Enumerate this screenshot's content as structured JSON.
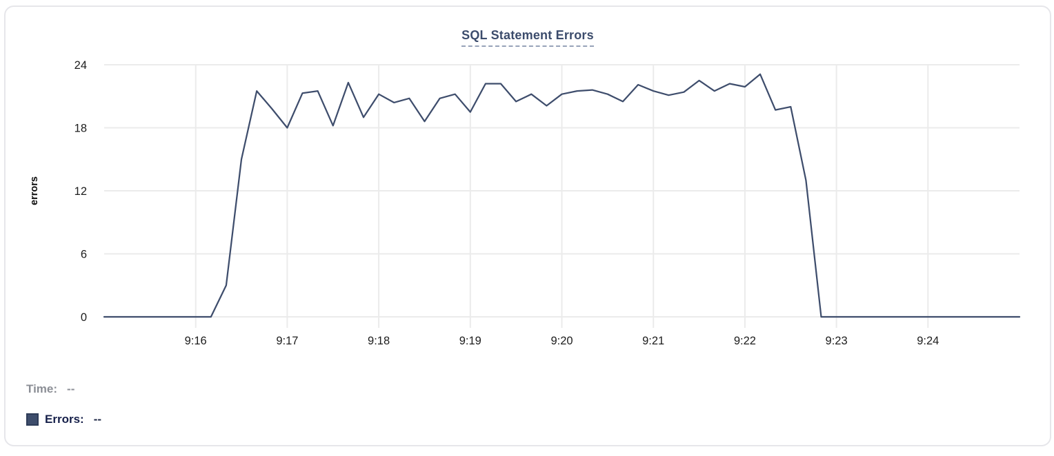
{
  "title": "SQL Statement Errors",
  "legend": {
    "time_label": "Time:",
    "time_value": "--",
    "errors_label": "Errors:",
    "errors_value": "--"
  },
  "colors": {
    "line": "#3e4d6c",
    "grid": "#ebebeb",
    "tick_text": "#1c1c1c",
    "axis_title_text": "#0d0d0d",
    "title_text": "#3c4c6c",
    "title_underline": "#96a2b8",
    "card_border": "#e6e6ea",
    "time_label_text": "#8b8e95",
    "errors_label_text": "#16204a"
  },
  "chart_data": {
    "type": "line",
    "title": "SQL Statement Errors",
    "xlabel": "",
    "ylabel": "errors",
    "ylim": [
      0,
      24
    ],
    "yticks": [
      0,
      6,
      12,
      18,
      24
    ],
    "grid": true,
    "markers": false,
    "legend_position": "bottom-left",
    "x_domain": [
      "9:15:00",
      "9:25:00"
    ],
    "x_ticks": [
      {
        "label": "9:16",
        "time": "9:16:00"
      },
      {
        "label": "9:17",
        "time": "9:17:00"
      },
      {
        "label": "9:18",
        "time": "9:18:00"
      },
      {
        "label": "9:19",
        "time": "9:19:00"
      },
      {
        "label": "9:20",
        "time": "9:20:00"
      },
      {
        "label": "9:21",
        "time": "9:21:00"
      },
      {
        "label": "9:22",
        "time": "9:22:00"
      },
      {
        "label": "9:23",
        "time": "9:23:00"
      },
      {
        "label": "9:24",
        "time": "9:24:00"
      }
    ],
    "series": [
      {
        "name": "Errors",
        "color": "#3e4d6c",
        "points": [
          [
            "9:15:00",
            0
          ],
          [
            "9:15:10",
            0
          ],
          [
            "9:15:20",
            0
          ],
          [
            "9:15:30",
            0
          ],
          [
            "9:15:40",
            0
          ],
          [
            "9:15:50",
            0
          ],
          [
            "9:16:00",
            0
          ],
          [
            "9:16:10",
            0
          ],
          [
            "9:16:20",
            3
          ],
          [
            "9:16:30",
            15
          ],
          [
            "9:16:40",
            21.5
          ],
          [
            "9:16:50",
            19.8
          ],
          [
            "9:17:00",
            18
          ],
          [
            "9:17:10",
            21.3
          ],
          [
            "9:17:20",
            21.5
          ],
          [
            "9:17:30",
            18.2
          ],
          [
            "9:17:40",
            22.3
          ],
          [
            "9:17:50",
            19
          ],
          [
            "9:18:00",
            21.2
          ],
          [
            "9:18:10",
            20.4
          ],
          [
            "9:18:20",
            20.8
          ],
          [
            "9:18:30",
            18.6
          ],
          [
            "9:18:40",
            20.8
          ],
          [
            "9:18:50",
            21.2
          ],
          [
            "9:19:00",
            19.5
          ],
          [
            "9:19:10",
            22.2
          ],
          [
            "9:19:20",
            22.2
          ],
          [
            "9:19:30",
            20.5
          ],
          [
            "9:19:40",
            21.2
          ],
          [
            "9:19:50",
            20.1
          ],
          [
            "9:20:00",
            21.2
          ],
          [
            "9:20:10",
            21.5
          ],
          [
            "9:20:20",
            21.6
          ],
          [
            "9:20:30",
            21.2
          ],
          [
            "9:20:40",
            20.5
          ],
          [
            "9:20:50",
            22.1
          ],
          [
            "9:21:00",
            21.5
          ],
          [
            "9:21:10",
            21.1
          ],
          [
            "9:21:20",
            21.4
          ],
          [
            "9:21:30",
            22.5
          ],
          [
            "9:21:40",
            21.5
          ],
          [
            "9:21:50",
            22.2
          ],
          [
            "9:22:00",
            21.9
          ],
          [
            "9:22:10",
            23.1
          ],
          [
            "9:22:20",
            19.7
          ],
          [
            "9:22:30",
            20
          ],
          [
            "9:22:40",
            13
          ],
          [
            "9:22:50",
            0
          ],
          [
            "9:23:00",
            0
          ],
          [
            "9:23:10",
            0
          ],
          [
            "9:23:20",
            0
          ],
          [
            "9:23:30",
            0
          ],
          [
            "9:23:40",
            0
          ],
          [
            "9:23:50",
            0
          ],
          [
            "9:24:00",
            0
          ],
          [
            "9:24:10",
            0
          ],
          [
            "9:24:20",
            0
          ],
          [
            "9:24:30",
            0
          ],
          [
            "9:24:40",
            0
          ],
          [
            "9:24:50",
            0
          ],
          [
            "9:25:00",
            0
          ]
        ]
      }
    ]
  }
}
